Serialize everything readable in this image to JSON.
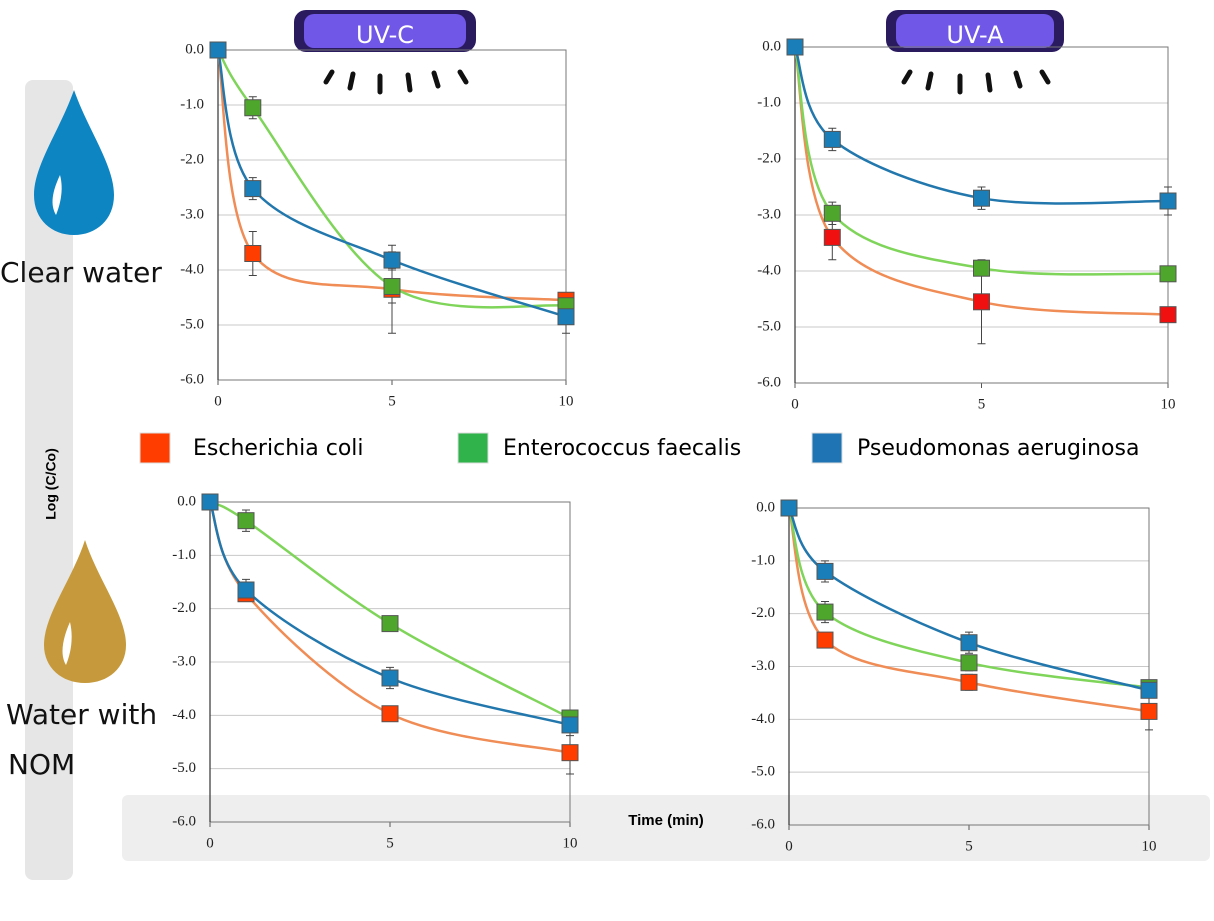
{
  "uv_labels": [
    "UV-C",
    "UV-A"
  ],
  "water_labels": [
    [
      "Clear water"
    ],
    [
      "Water with",
      "NOM"
    ]
  ],
  "y_label": "Log (C/Co)",
  "x_label": "Time (min)",
  "legend": [
    {
      "name": "Escherichia  coli",
      "color": "#ff3d00"
    },
    {
      "name": "Enterococcus faecalis",
      "color": "#2fb34a"
    },
    {
      "name": "Pseudomonas aeruginosa",
      "color": "#1f74b4"
    }
  ],
  "chart_data": [
    {
      "type": "line",
      "x": [
        0,
        1,
        5,
        10
      ],
      "xlim": [
        0,
        10
      ],
      "xticks": [
        0,
        5,
        10
      ],
      "ylim": [
        -6,
        0
      ],
      "yticks": [
        {
          "value": 0,
          "label": "0.0"
        },
        {
          "value": -1,
          "label": "-1.0"
        },
        {
          "value": -2,
          "label": "-2.0"
        },
        {
          "value": -3,
          "label": "-3.0"
        },
        {
          "value": -4,
          "label": "-4.0"
        },
        {
          "value": -5,
          "label": "-5.0"
        },
        {
          "value": -6,
          "label": "-6.0"
        }
      ],
      "grid": true,
      "series": [
        {
          "color": "#ff3d00",
          "line_color": "#f08c55",
          "values": [
            0,
            -3.7,
            -4.35,
            -4.55
          ],
          "errors": [
            null,
            0.4,
            0.8,
            0.1
          ]
        },
        {
          "color": "#4ea62c",
          "line_color": "#7fd45a",
          "values": [
            0,
            -1.05,
            -4.3,
            -4.65
          ],
          "errors": [
            null,
            0.2,
            0.3,
            0.1
          ]
        },
        {
          "color": "#1a7fb8",
          "line_color": "#2277ad",
          "values": [
            0,
            -2.52,
            -3.82,
            -4.85
          ],
          "errors": [
            null,
            0.2,
            0.15,
            0.3
          ]
        }
      ]
    },
    {
      "type": "line",
      "x": [
        0,
        1,
        5,
        10
      ],
      "xlim": [
        0,
        10
      ],
      "xticks": [
        0,
        5,
        10
      ],
      "ylim": [
        -6,
        0
      ],
      "yticks": [
        {
          "value": 0,
          "label": "0.0"
        },
        {
          "value": -1,
          "label": "-1.0"
        },
        {
          "value": -2,
          "label": "-2.0"
        },
        {
          "value": -3,
          "label": "-3.0"
        },
        {
          "value": -4,
          "label": "-4.0"
        },
        {
          "value": -5,
          "label": "-5.0"
        },
        {
          "value": -6,
          "label": "-6.0"
        }
      ],
      "grid": true,
      "series": [
        {
          "color": "#f01010",
          "line_color": "#f08c55",
          "values": [
            0,
            -3.4,
            -4.55,
            -4.78
          ],
          "errors": [
            null,
            0.4,
            0.75,
            0.05
          ]
        },
        {
          "color": "#4ea62c",
          "line_color": "#7fd45a",
          "values": [
            0,
            -2.97,
            -3.95,
            -4.05
          ],
          "errors": [
            null,
            0.2,
            0.1,
            0.05
          ]
        },
        {
          "color": "#1a7fb8",
          "line_color": "#2277ad",
          "values": [
            0,
            -1.65,
            -2.7,
            -2.75
          ],
          "errors": [
            null,
            0.2,
            0.2,
            0.25
          ]
        }
      ]
    },
    {
      "type": "line",
      "x": [
        0,
        1,
        5,
        10
      ],
      "xlim": [
        0,
        10
      ],
      "xticks": [
        0,
        5,
        10
      ],
      "ylim": [
        -6,
        0
      ],
      "yticks": [
        {
          "value": 0,
          "label": "0.0"
        },
        {
          "value": -1,
          "label": "-1.0"
        },
        {
          "value": -2,
          "label": "-2.0"
        },
        {
          "value": -3,
          "label": "-3.0"
        },
        {
          "value": -4,
          "label": "-4.0"
        },
        {
          "value": -5,
          "label": "-5.0"
        },
        {
          "value": -6,
          "label": "-6.0"
        }
      ],
      "grid": true,
      "series": [
        {
          "color": "#ff3d00",
          "line_color": "#f08c55",
          "values": [
            0,
            -1.72,
            -3.97,
            -4.7
          ],
          "errors": [
            null,
            0.1,
            0.12,
            0.4
          ]
        },
        {
          "color": "#4ea62c",
          "line_color": "#7fd45a",
          "values": [
            0,
            -0.35,
            -2.28,
            -4.05
          ],
          "errors": [
            null,
            0.2,
            0.05,
            0.05
          ]
        },
        {
          "color": "#1a7fb8",
          "line_color": "#2277ad",
          "values": [
            0,
            -1.65,
            -3.3,
            -4.18
          ],
          "errors": [
            null,
            0.2,
            0.2,
            0.2
          ]
        }
      ]
    },
    {
      "type": "line",
      "x": [
        0,
        1,
        5,
        10
      ],
      "xlim": [
        0,
        10
      ],
      "xticks": [
        0,
        5,
        10
      ],
      "ylim": [
        -6,
        0
      ],
      "yticks": [
        {
          "value": 0,
          "label": "0.0"
        },
        {
          "value": -1,
          "label": "-1.0"
        },
        {
          "value": -2,
          "label": "-2.0"
        },
        {
          "value": -3,
          "label": "-3.0"
        },
        {
          "value": -4,
          "label": "-4.0"
        },
        {
          "value": -5,
          "label": "-5.0"
        },
        {
          "value": -6,
          "label": "-6.0"
        }
      ],
      "grid": true,
      "series": [
        {
          "color": "#ff3d00",
          "line_color": "#f08c55",
          "values": [
            0,
            -2.5,
            -3.3,
            -3.85
          ],
          "errors": [
            null,
            0.05,
            0.15,
            0.35
          ]
        },
        {
          "color": "#4ea62c",
          "line_color": "#7fd45a",
          "values": [
            0,
            -1.97,
            -2.93,
            -3.4
          ],
          "errors": [
            null,
            0.2,
            0.15,
            0.05
          ]
        },
        {
          "color": "#1a7fb8",
          "line_color": "#2277ad",
          "values": [
            0,
            -1.2,
            -2.55,
            -3.45
          ],
          "errors": [
            null,
            0.2,
            0.2,
            0.1
          ]
        }
      ]
    }
  ]
}
